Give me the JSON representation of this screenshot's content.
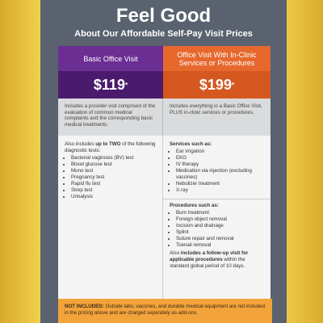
{
  "title": "Feel Good",
  "subtitle": "About Our Affordable Self-Pay Visit Prices",
  "columns": [
    {
      "name": "Basic Office Visit",
      "price": "$119",
      "price_mark": "*",
      "description": "Includes a provider visit comprised of the evaluation of common medical complaints and the corresponding basic medical treatments.",
      "intro": [
        "Also includes ",
        "up to TWO",
        " of the following diagnostic tests:"
      ],
      "items": [
        "Bacterial vaginosis (BV) test",
        "Blood glucose test",
        "Mono test",
        "Pregnancy test",
        "Rapid flu test",
        "Strep test",
        "Urinalysis"
      ]
    },
    {
      "name": "Office Visit With In-Clinic Services or Procedures",
      "price": "$199",
      "price_mark": "*",
      "description": "Includes everything in a Basic Office Visit, PLUS in-clinic services or procedures.",
      "services_heading": "Services such as:",
      "services": [
        "Ear irrigation",
        "EKG",
        "IV therapy",
        "Medication via injection (excluding vaccines)",
        "Nebulizer treatment",
        "X-ray"
      ],
      "procedures_heading": "Procedures such as:",
      "procedures": [
        "Burn treatment",
        "Foreign object removal",
        "Incision and drainage",
        "Splint",
        "Suture repair and removal",
        "Toenail removal"
      ],
      "followup": [
        "Also ",
        "includes a follow-up visit for applicable procedures",
        " within the standard global period of 10 days."
      ]
    }
  ],
  "footer": {
    "label": "NOT INCLUDED:",
    "text": " Outside labs, vaccines, and durable medical equipment are not included in the pricing above and are charged separately as add-ons."
  }
}
